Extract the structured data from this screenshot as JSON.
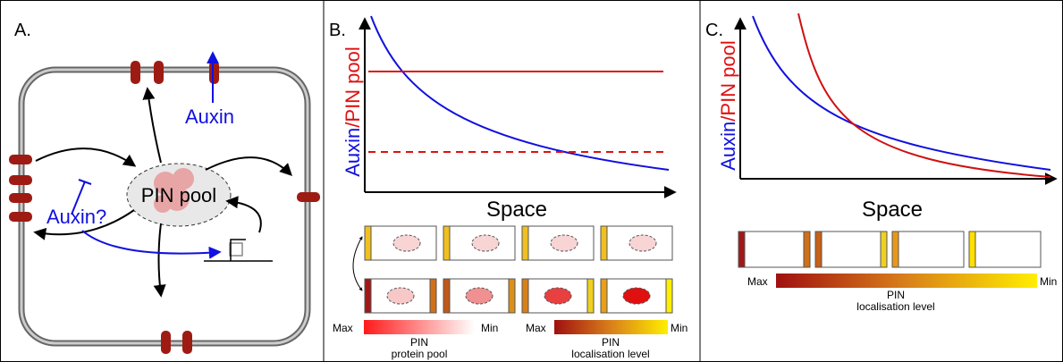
{
  "panel_a": {
    "label": "A.",
    "auxin_out": "Auxin",
    "auxin_in": "Auxin?",
    "pin_pool": "PIN pool"
  },
  "panel_b": {
    "label": "B.",
    "y_label_auxin": "Auxin",
    "y_label_pin": "/PIN pool",
    "x_label": "Space",
    "legend_pool": {
      "max": "Max",
      "min": "Min",
      "title": "PIN",
      "subtitle": "protein pool"
    },
    "legend_loc": {
      "max": "Max",
      "min": "Min",
      "title": "PIN",
      "subtitle": "localisation level"
    }
  },
  "panel_c": {
    "label": "C.",
    "y_label_auxin": "Auxin",
    "y_label_pin": "/PIN pool",
    "x_label": "Space",
    "legend_loc": {
      "max": "Max",
      "min": "Min",
      "title": "PIN",
      "subtitle": "localisation level"
    }
  }
}
